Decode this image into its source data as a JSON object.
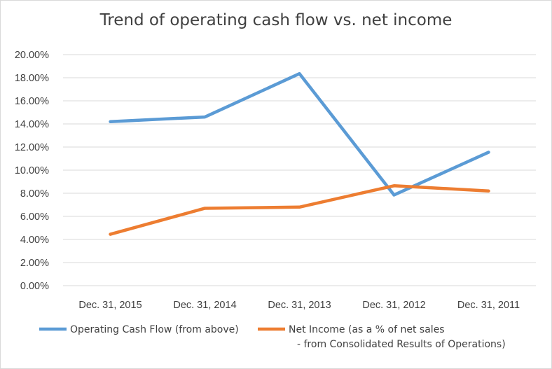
{
  "chart_data": {
    "type": "line",
    "title": "Trend of operating cash flow vs. net income",
    "categories": [
      "Dec. 31, 2015",
      "Dec. 31, 2014",
      "Dec. 31, 2013",
      "Dec. 31, 2012",
      "Dec. 31, 2011"
    ],
    "series": [
      {
        "name": "Operating Cash Flow (from above)",
        "color": "#5b9bd5",
        "values": [
          14.2,
          14.6,
          18.35,
          7.85,
          11.55
        ]
      },
      {
        "name": [
          "Net Income (as a % of net sales",
          "- from Consolidated Results of Operations)"
        ],
        "color": "#ed7d31",
        "values": [
          4.45,
          6.7,
          6.8,
          8.65,
          8.2
        ]
      }
    ],
    "y_ticks": [
      "0.00%",
      "2.00%",
      "4.00%",
      "6.00%",
      "8.00%",
      "10.00%",
      "12.00%",
      "14.00%",
      "16.00%",
      "18.00%",
      "20.00%"
    ],
    "ylim": [
      0,
      20
    ],
    "grid": true,
    "legend_position": "bottom"
  }
}
